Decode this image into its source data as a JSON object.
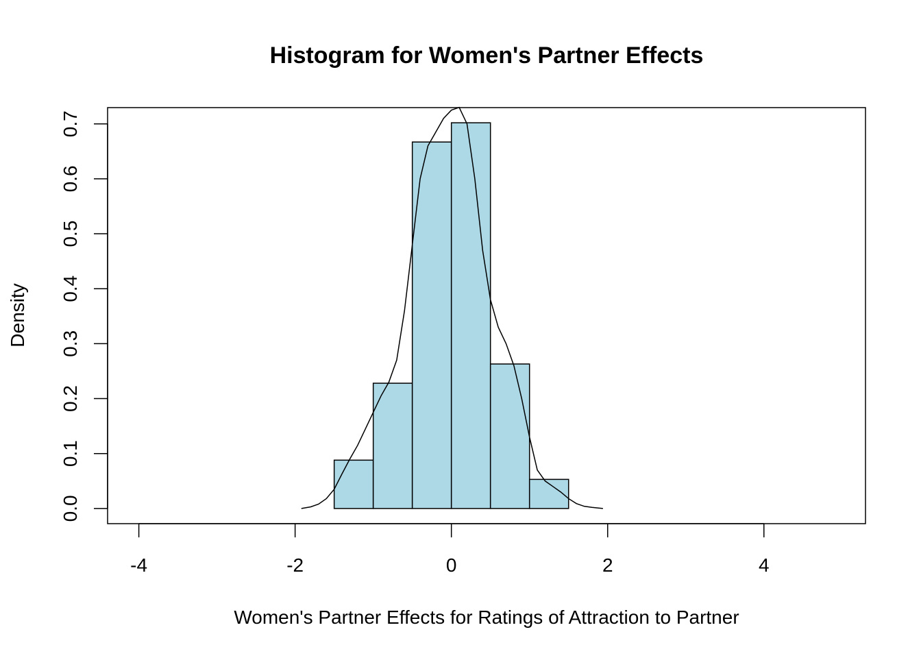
{
  "chart_data": {
    "type": "bar",
    "title": "Histogram for Women's Partner Effects",
    "xlabel": "Women's Partner Effects for Ratings of Attraction to Partner",
    "ylabel": "Density",
    "xlim": [
      -4.4,
      5.3
    ],
    "ylim": [
      -0.0276,
      0.7296
    ],
    "x_ticks": [
      -4,
      -2,
      0,
      2,
      4
    ],
    "x_tick_labels": [
      "-4",
      "-2",
      "0",
      "2",
      "4"
    ],
    "y_ticks": [
      0.0,
      0.1,
      0.2,
      0.3,
      0.4,
      0.5,
      0.6,
      0.7
    ],
    "y_tick_labels": [
      "0.0",
      "0.1",
      "0.2",
      "0.3",
      "0.4",
      "0.5",
      "0.6",
      "0.7"
    ],
    "bar_color": "#add8e6",
    "bins": [
      {
        "start": -1.5,
        "end": -1.0,
        "density": 0.088
      },
      {
        "start": -1.0,
        "end": -0.5,
        "density": 0.228
      },
      {
        "start": -0.5,
        "end": 0.0,
        "density": 0.667
      },
      {
        "start": 0.0,
        "end": 0.5,
        "density": 0.702
      },
      {
        "start": 0.5,
        "end": 1.0,
        "density": 0.263
      },
      {
        "start": 1.0,
        "end": 1.5,
        "density": 0.053
      }
    ],
    "density_curve": {
      "x": [
        -1.92,
        -1.8,
        -1.7,
        -1.6,
        -1.5,
        -1.4,
        -1.3,
        -1.2,
        -1.1,
        -1.0,
        -0.9,
        -0.8,
        -0.7,
        -0.6,
        -0.5,
        -0.4,
        -0.3,
        -0.2,
        -0.1,
        0.0,
        0.1,
        0.2,
        0.3,
        0.4,
        0.5,
        0.6,
        0.7,
        0.8,
        0.9,
        1.0,
        1.1,
        1.2,
        1.3,
        1.4,
        1.5,
        1.6,
        1.7,
        1.8,
        1.94
      ],
      "y": [
        0.0,
        0.003,
        0.008,
        0.018,
        0.035,
        0.063,
        0.09,
        0.115,
        0.145,
        0.175,
        0.205,
        0.23,
        0.27,
        0.36,
        0.48,
        0.6,
        0.66,
        0.685,
        0.71,
        0.725,
        0.73,
        0.7,
        0.6,
        0.47,
        0.38,
        0.33,
        0.3,
        0.26,
        0.2,
        0.13,
        0.07,
        0.05,
        0.04,
        0.03,
        0.018,
        0.009,
        0.004,
        0.002,
        0.0
      ]
    },
    "grid": false,
    "legend": "none"
  }
}
